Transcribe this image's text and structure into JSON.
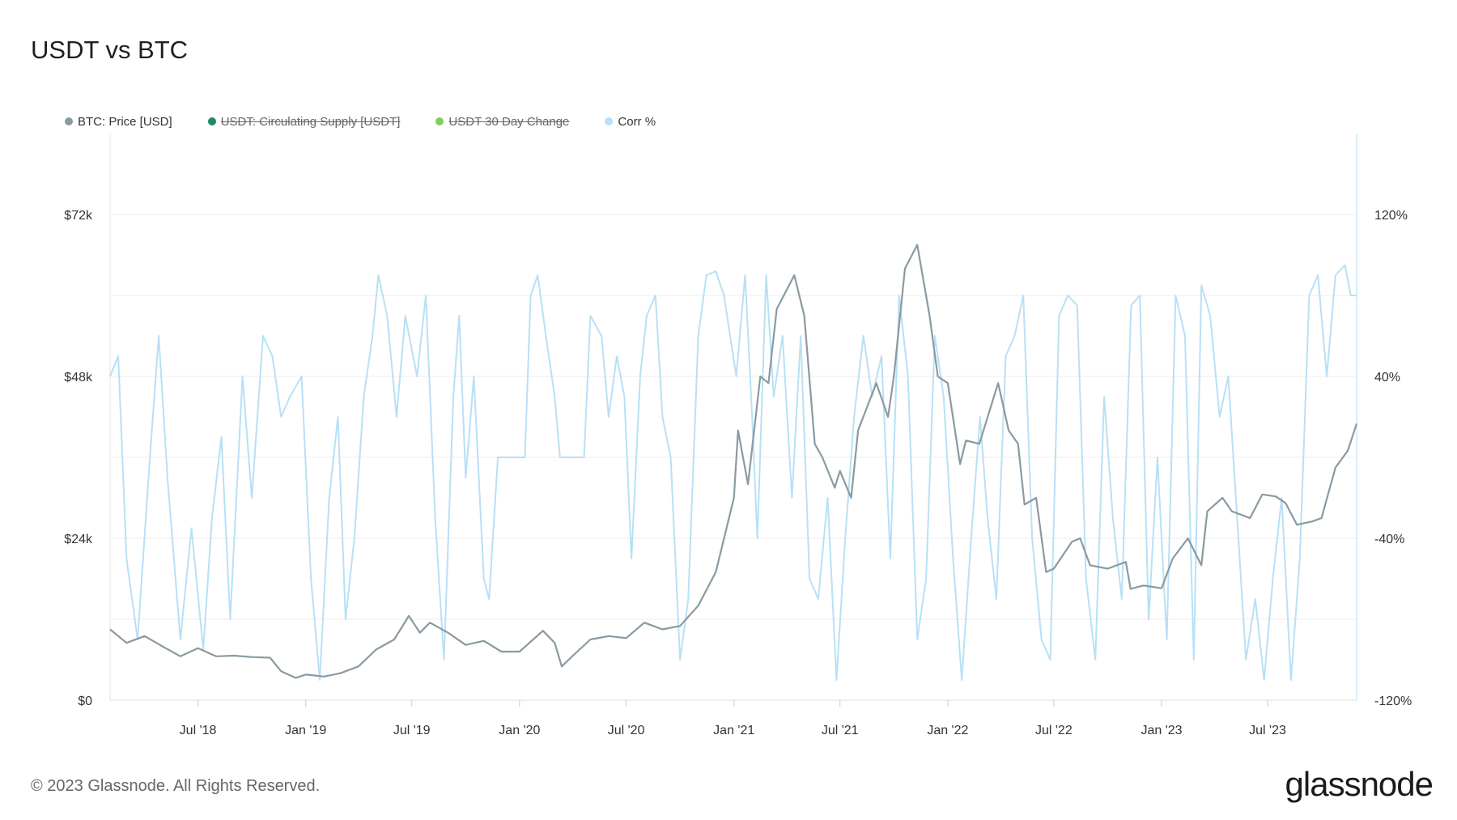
{
  "title": "USDT vs BTC",
  "legend": [
    {
      "label": "BTC: Price [USD]",
      "color": "#8a9aa2",
      "hidden": false
    },
    {
      "label": "USDT: Circulating Supply [USDT]",
      "color": "#1f8a62",
      "hidden": true
    },
    {
      "label": "USDT 30 Day Change",
      "color": "#7ed05a",
      "hidden": true
    },
    {
      "label": "Corr %",
      "color": "#b8e0f6",
      "hidden": false
    }
  ],
  "footer": {
    "copyright": "© 2023 Glassnode. All Rights Reserved.",
    "logo": "glassnode"
  },
  "chart_data": {
    "type": "line",
    "x_range": [
      "2018-02-01",
      "2023-11-30"
    ],
    "x_ticks": [
      {
        "date": "2018-07-01",
        "label": "Jul '18"
      },
      {
        "date": "2019-01-01",
        "label": "Jan '19"
      },
      {
        "date": "2019-07-01",
        "label": "Jul '19"
      },
      {
        "date": "2020-01-01",
        "label": "Jan '20"
      },
      {
        "date": "2020-07-01",
        "label": "Jul '20"
      },
      {
        "date": "2021-01-01",
        "label": "Jan '21"
      },
      {
        "date": "2021-07-01",
        "label": "Jul '21"
      },
      {
        "date": "2022-01-01",
        "label": "Jan '22"
      },
      {
        "date": "2022-07-01",
        "label": "Jul '22"
      },
      {
        "date": "2023-01-01",
        "label": "Jan '23"
      },
      {
        "date": "2023-07-01",
        "label": "Jul '23"
      }
    ],
    "y_left": {
      "range": [
        0,
        84000
      ],
      "ticks": [
        {
          "v": 0,
          "label": "$0"
        },
        {
          "v": 24000,
          "label": "$24k"
        },
        {
          "v": 48000,
          "label": "$48k"
        },
        {
          "v": 72000,
          "label": "$72k"
        }
      ]
    },
    "y_right": {
      "range": [
        -120,
        160
      ],
      "ticks": [
        {
          "v": -120,
          "label": "-120%"
        },
        {
          "v": -40,
          "label": "-40%"
        },
        {
          "v": 40,
          "label": "40%"
        },
        {
          "v": 120,
          "label": "120%"
        }
      ]
    },
    "grid": true,
    "series": [
      {
        "name": "BTC: Price [USD]",
        "axis": "left",
        "color": "#8a9aa2",
        "points": [
          [
            "2018-02-01",
            10500
          ],
          [
            "2018-03-01",
            8500
          ],
          [
            "2018-04-01",
            9500
          ],
          [
            "2018-05-01",
            8000
          ],
          [
            "2018-06-01",
            6500
          ],
          [
            "2018-07-01",
            7700
          ],
          [
            "2018-08-01",
            6500
          ],
          [
            "2018-09-01",
            6600
          ],
          [
            "2018-10-01",
            6400
          ],
          [
            "2018-11-01",
            6300
          ],
          [
            "2018-11-20",
            4300
          ],
          [
            "2018-12-15",
            3300
          ],
          [
            "2019-01-01",
            3800
          ],
          [
            "2019-02-01",
            3500
          ],
          [
            "2019-03-01",
            4000
          ],
          [
            "2019-04-01",
            5000
          ],
          [
            "2019-05-01",
            7500
          ],
          [
            "2019-06-01",
            9000
          ],
          [
            "2019-06-26",
            12500
          ],
          [
            "2019-07-15",
            10000
          ],
          [
            "2019-08-01",
            11500
          ],
          [
            "2019-09-01",
            10000
          ],
          [
            "2019-10-01",
            8200
          ],
          [
            "2019-11-01",
            8800
          ],
          [
            "2019-12-01",
            7200
          ],
          [
            "2020-01-01",
            7200
          ],
          [
            "2020-02-10",
            10300
          ],
          [
            "2020-03-01",
            8500
          ],
          [
            "2020-03-13",
            5000
          ],
          [
            "2020-04-01",
            6600
          ],
          [
            "2020-05-01",
            9000
          ],
          [
            "2020-06-01",
            9500
          ],
          [
            "2020-07-01",
            9200
          ],
          [
            "2020-08-01",
            11500
          ],
          [
            "2020-09-01",
            10500
          ],
          [
            "2020-10-01",
            11000
          ],
          [
            "2020-11-01",
            14000
          ],
          [
            "2020-12-01",
            19000
          ],
          [
            "2021-01-01",
            30000
          ],
          [
            "2021-01-08",
            40000
          ],
          [
            "2021-01-25",
            32000
          ],
          [
            "2021-02-15",
            48000
          ],
          [
            "2021-03-01",
            47000
          ],
          [
            "2021-03-15",
            58000
          ],
          [
            "2021-04-14",
            63000
          ],
          [
            "2021-05-01",
            57000
          ],
          [
            "2021-05-19",
            38000
          ],
          [
            "2021-06-01",
            36000
          ],
          [
            "2021-06-22",
            31500
          ],
          [
            "2021-07-01",
            34000
          ],
          [
            "2021-07-20",
            30000
          ],
          [
            "2021-08-01",
            40000
          ],
          [
            "2021-09-01",
            47000
          ],
          [
            "2021-09-21",
            42000
          ],
          [
            "2021-10-01",
            48000
          ],
          [
            "2021-10-20",
            64000
          ],
          [
            "2021-11-10",
            67500
          ],
          [
            "2021-12-01",
            57000
          ],
          [
            "2021-12-15",
            48000
          ],
          [
            "2022-01-01",
            47000
          ],
          [
            "2022-01-22",
            35000
          ],
          [
            "2022-02-01",
            38500
          ],
          [
            "2022-02-24",
            38000
          ],
          [
            "2022-03-28",
            47000
          ],
          [
            "2022-04-15",
            40000
          ],
          [
            "2022-05-01",
            38000
          ],
          [
            "2022-05-12",
            29000
          ],
          [
            "2022-06-01",
            30000
          ],
          [
            "2022-06-18",
            19000
          ],
          [
            "2022-07-01",
            19500
          ],
          [
            "2022-08-01",
            23500
          ],
          [
            "2022-08-15",
            24000
          ],
          [
            "2022-09-01",
            20000
          ],
          [
            "2022-10-01",
            19500
          ],
          [
            "2022-11-01",
            20500
          ],
          [
            "2022-11-09",
            16500
          ],
          [
            "2022-12-01",
            17000
          ],
          [
            "2023-01-01",
            16600
          ],
          [
            "2023-01-20",
            21000
          ],
          [
            "2023-02-15",
            24000
          ],
          [
            "2023-03-10",
            20000
          ],
          [
            "2023-03-20",
            28000
          ],
          [
            "2023-04-15",
            30000
          ],
          [
            "2023-05-01",
            28000
          ],
          [
            "2023-06-01",
            27000
          ],
          [
            "2023-06-22",
            30500
          ],
          [
            "2023-07-15",
            30200
          ],
          [
            "2023-08-01",
            29200
          ],
          [
            "2023-08-20",
            26000
          ],
          [
            "2023-09-15",
            26500
          ],
          [
            "2023-10-01",
            27000
          ],
          [
            "2023-10-25",
            34500
          ],
          [
            "2023-11-15",
            37000
          ],
          [
            "2023-11-30",
            41000
          ]
        ]
      },
      {
        "name": "Corr %",
        "axis": "right",
        "color": "#b8e0f6",
        "points": [
          [
            "2018-02-01",
            40
          ],
          [
            "2018-02-15",
            50
          ],
          [
            "2018-03-01",
            -50
          ],
          [
            "2018-03-20",
            -90
          ],
          [
            "2018-04-10",
            0
          ],
          [
            "2018-04-25",
            60
          ],
          [
            "2018-05-10",
            -10
          ],
          [
            "2018-06-01",
            -90
          ],
          [
            "2018-06-20",
            -35
          ],
          [
            "2018-07-10",
            -95
          ],
          [
            "2018-07-25",
            -30
          ],
          [
            "2018-08-10",
            10
          ],
          [
            "2018-08-25",
            -80
          ],
          [
            "2018-09-15",
            40
          ],
          [
            "2018-10-01",
            -20
          ],
          [
            "2018-10-20",
            60
          ],
          [
            "2018-11-05",
            50
          ],
          [
            "2018-11-20",
            20
          ],
          [
            "2018-12-05",
            30
          ],
          [
            "2018-12-25",
            40
          ],
          [
            "2019-01-10",
            -60
          ],
          [
            "2019-01-25",
            -110
          ],
          [
            "2019-02-10",
            -20
          ],
          [
            "2019-02-25",
            20
          ],
          [
            "2019-03-10",
            -80
          ],
          [
            "2019-03-25",
            -40
          ],
          [
            "2019-04-10",
            30
          ],
          [
            "2019-04-25",
            60
          ],
          [
            "2019-05-05",
            90
          ],
          [
            "2019-05-20",
            70
          ],
          [
            "2019-06-05",
            20
          ],
          [
            "2019-06-20",
            70
          ],
          [
            "2019-07-10",
            40
          ],
          [
            "2019-07-25",
            80
          ],
          [
            "2019-08-10",
            -30
          ],
          [
            "2019-08-25",
            -100
          ],
          [
            "2019-09-10",
            30
          ],
          [
            "2019-09-20",
            70
          ],
          [
            "2019-10-01",
            -10
          ],
          [
            "2019-10-15",
            40
          ],
          [
            "2019-11-01",
            -60
          ],
          [
            "2019-11-10",
            -70
          ],
          [
            "2019-11-25",
            0
          ],
          [
            "2019-12-20",
            0
          ],
          [
            "2020-01-10",
            0
          ],
          [
            "2020-01-20",
            80
          ],
          [
            "2020-02-01",
            90
          ],
          [
            "2020-02-15",
            60
          ],
          [
            "2020-03-01",
            30
          ],
          [
            "2020-03-10",
            0
          ],
          [
            "2020-04-01",
            0
          ],
          [
            "2020-04-20",
            0
          ],
          [
            "2020-05-01",
            70
          ],
          [
            "2020-05-20",
            60
          ],
          [
            "2020-06-01",
            20
          ],
          [
            "2020-06-15",
            50
          ],
          [
            "2020-06-28",
            30
          ],
          [
            "2020-07-10",
            -50
          ],
          [
            "2020-07-25",
            40
          ],
          [
            "2020-08-05",
            70
          ],
          [
            "2020-08-20",
            80
          ],
          [
            "2020-09-01",
            20
          ],
          [
            "2020-09-15",
            0
          ],
          [
            "2020-10-01",
            -100
          ],
          [
            "2020-10-15",
            -70
          ],
          [
            "2020-11-01",
            60
          ],
          [
            "2020-11-15",
            90
          ],
          [
            "2020-12-01",
            92
          ],
          [
            "2020-12-15",
            80
          ],
          [
            "2021-01-05",
            40
          ],
          [
            "2021-01-20",
            90
          ],
          [
            "2021-02-01",
            20
          ],
          [
            "2021-02-10",
            -40
          ],
          [
            "2021-02-25",
            90
          ],
          [
            "2021-03-10",
            30
          ],
          [
            "2021-03-25",
            60
          ],
          [
            "2021-04-10",
            -20
          ],
          [
            "2021-04-25",
            60
          ],
          [
            "2021-05-10",
            -60
          ],
          [
            "2021-05-25",
            -70
          ],
          [
            "2021-06-10",
            -20
          ],
          [
            "2021-06-25",
            -110
          ],
          [
            "2021-07-10",
            -40
          ],
          [
            "2021-07-25",
            20
          ],
          [
            "2021-08-10",
            60
          ],
          [
            "2021-08-25",
            30
          ],
          [
            "2021-09-10",
            50
          ],
          [
            "2021-09-25",
            -50
          ],
          [
            "2021-10-10",
            80
          ],
          [
            "2021-10-25",
            40
          ],
          [
            "2021-11-10",
            -90
          ],
          [
            "2021-11-25",
            -60
          ],
          [
            "2021-12-10",
            60
          ],
          [
            "2021-12-25",
            30
          ],
          [
            "2022-01-10",
            -50
          ],
          [
            "2022-01-25",
            -110
          ],
          [
            "2022-02-10",
            -40
          ],
          [
            "2022-02-25",
            20
          ],
          [
            "2022-03-10",
            -30
          ],
          [
            "2022-03-25",
            -70
          ],
          [
            "2022-04-10",
            50
          ],
          [
            "2022-04-25",
            60
          ],
          [
            "2022-05-10",
            80
          ],
          [
            "2022-05-25",
            -40
          ],
          [
            "2022-06-10",
            -90
          ],
          [
            "2022-06-25",
            -100
          ],
          [
            "2022-07-10",
            70
          ],
          [
            "2022-07-25",
            80
          ],
          [
            "2022-08-10",
            75
          ],
          [
            "2022-08-25",
            -60
          ],
          [
            "2022-09-10",
            -100
          ],
          [
            "2022-09-25",
            30
          ],
          [
            "2022-10-10",
            -30
          ],
          [
            "2022-10-25",
            -70
          ],
          [
            "2022-11-10",
            75
          ],
          [
            "2022-11-25",
            80
          ],
          [
            "2022-12-10",
            -80
          ],
          [
            "2022-12-25",
            0
          ],
          [
            "2023-01-10",
            -90
          ],
          [
            "2023-01-25",
            80
          ],
          [
            "2023-02-10",
            60
          ],
          [
            "2023-02-25",
            -100
          ],
          [
            "2023-03-10",
            85
          ],
          [
            "2023-03-25",
            70
          ],
          [
            "2023-04-10",
            20
          ],
          [
            "2023-04-25",
            40
          ],
          [
            "2023-05-10",
            -30
          ],
          [
            "2023-05-25",
            -100
          ],
          [
            "2023-06-10",
            -70
          ],
          [
            "2023-06-25",
            -110
          ],
          [
            "2023-07-10",
            -60
          ],
          [
            "2023-07-25",
            -20
          ],
          [
            "2023-08-10",
            -110
          ],
          [
            "2023-08-25",
            -50
          ],
          [
            "2023-09-10",
            80
          ],
          [
            "2023-09-25",
            90
          ],
          [
            "2023-10-10",
            40
          ],
          [
            "2023-10-25",
            90
          ],
          [
            "2023-11-10",
            95
          ],
          [
            "2023-11-20",
            80
          ],
          [
            "2023-11-30",
            80
          ]
        ]
      }
    ]
  }
}
